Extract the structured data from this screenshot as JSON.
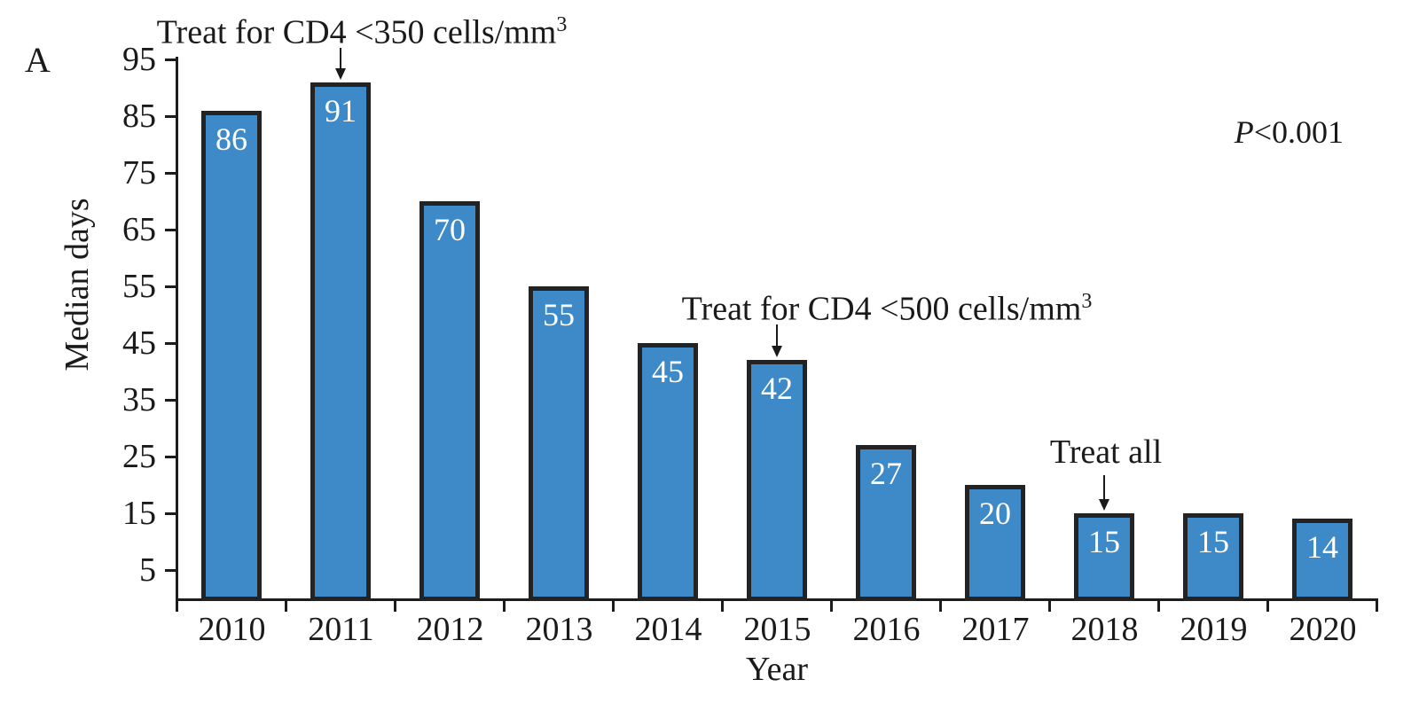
{
  "panel_label": "A",
  "p_value": {
    "italic_part": "P",
    "rest": "<0.001"
  },
  "chart_data": {
    "type": "bar",
    "title": "",
    "xlabel": "Year",
    "ylabel": "Median days",
    "categories": [
      "2010",
      "2011",
      "2012",
      "2013",
      "2014",
      "2015",
      "2016",
      "2017",
      "2018",
      "2019",
      "2020"
    ],
    "values": [
      86,
      91,
      70,
      55,
      45,
      42,
      27,
      20,
      15,
      15,
      14
    ],
    "yticks": [
      5,
      15,
      25,
      35,
      45,
      55,
      65,
      75,
      85,
      95
    ],
    "ylim": [
      0,
      95
    ],
    "grid": false,
    "legend": "none",
    "bar_color": "#3E8AC8",
    "bar_border_color": "#232323",
    "axis_color": "#1c1c1c",
    "value_label_color": "#ffffff",
    "annotations": [
      {
        "text": "Treat for CD4 <350 cells/mm",
        "superscript": "3",
        "target_year": "2011"
      },
      {
        "text": "Treat for CD4 <500 cells/mm",
        "superscript": "3",
        "target_year": "2015"
      },
      {
        "text": "Treat all",
        "superscript": "",
        "target_year": "2018"
      }
    ]
  }
}
